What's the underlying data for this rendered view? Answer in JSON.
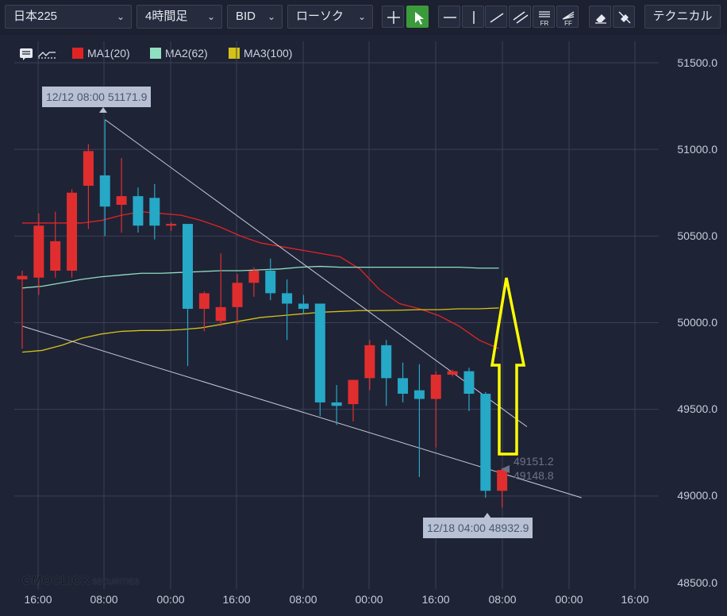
{
  "toolbar": {
    "symbol": "日本225",
    "timeframe": "4時間足",
    "side": "BID",
    "chart_type": "ローソク",
    "technical": "テクニカル",
    "tools": [
      "crosshair-icon",
      "cursor-icon",
      "horizontal-line-icon",
      "vertical-line-icon",
      "trend-line-icon",
      "parallel-lines-icon",
      "fibonacci-retracement-icon",
      "fibonacci-fan-icon",
      "eraser-icon",
      "erase-all-icon"
    ],
    "tool_labels": {
      "fr": "FR",
      "ff": "FF"
    },
    "active_tool": "cursor-icon"
  },
  "legend": [
    {
      "label": "MA1(20)",
      "color": "#e02424"
    },
    {
      "label": "MA2(62)",
      "color": "#8fe0c0"
    },
    {
      "label": "MA3(100)",
      "color": "#d4c21a"
    }
  ],
  "brand": {
    "name": "GMOCLICK",
    "sub": "SECURITIES"
  },
  "colors": {
    "up": "#e02e2e",
    "down": "#26a8c7",
    "background": "#1f2336",
    "arrow": "#ffff00"
  },
  "chart_data": {
    "type": "candlestick",
    "y_ticks": [
      "51500.0",
      "51000.0",
      "50500.0",
      "50000.0",
      "49500.0",
      "49000.0",
      "48500.0"
    ],
    "ylim": [
      48500,
      51700
    ],
    "x_ticks": [
      "16:00",
      "08:00",
      "00:00",
      "16:00",
      "08:00",
      "00:00",
      "16:00",
      "08:00",
      "00:00",
      "16:00"
    ],
    "candles": [
      {
        "o": 50250,
        "h": 50300,
        "l": 49850,
        "c": 50270
      },
      {
        "o": 50260,
        "h": 50630,
        "l": 50160,
        "c": 50560
      },
      {
        "o": 50300,
        "h": 50640,
        "l": 50260,
        "c": 50470
      },
      {
        "o": 50300,
        "h": 50770,
        "l": 50260,
        "c": 50750
      },
      {
        "o": 50790,
        "h": 51030,
        "l": 50540,
        "c": 50990
      },
      {
        "o": 50850,
        "h": 51172,
        "l": 50500,
        "c": 50670
      },
      {
        "o": 50680,
        "h": 50950,
        "l": 50520,
        "c": 50730
      },
      {
        "o": 50730,
        "h": 50780,
        "l": 50520,
        "c": 50560
      },
      {
        "o": 50720,
        "h": 50800,
        "l": 50480,
        "c": 50560
      },
      {
        "o": 50560,
        "h": 50580,
        "l": 50530,
        "c": 50570
      },
      {
        "o": 50570,
        "h": 50560,
        "l": 49750,
        "c": 50080
      },
      {
        "o": 50080,
        "h": 50180,
        "l": 49950,
        "c": 50170
      },
      {
        "o": 50010,
        "h": 50400,
        "l": 49980,
        "c": 50090
      },
      {
        "o": 50090,
        "h": 50280,
        "l": 49990,
        "c": 50230
      },
      {
        "o": 50230,
        "h": 50320,
        "l": 50150,
        "c": 50300
      },
      {
        "o": 50300,
        "h": 50370,
        "l": 50130,
        "c": 50170
      },
      {
        "o": 50170,
        "h": 50250,
        "l": 49900,
        "c": 50110
      },
      {
        "o": 50110,
        "h": 50160,
        "l": 50050,
        "c": 50080
      },
      {
        "o": 50110,
        "h": 50110,
        "l": 49460,
        "c": 49540
      },
      {
        "o": 49540,
        "h": 49640,
        "l": 49410,
        "c": 49520
      },
      {
        "o": 49530,
        "h": 49670,
        "l": 49430,
        "c": 49670
      },
      {
        "o": 49680,
        "h": 49900,
        "l": 49610,
        "c": 49870
      },
      {
        "o": 49870,
        "h": 49900,
        "l": 49520,
        "c": 49680
      },
      {
        "o": 49680,
        "h": 49770,
        "l": 49540,
        "c": 49590
      },
      {
        "o": 49610,
        "h": 49760,
        "l": 49110,
        "c": 49560
      },
      {
        "o": 49560,
        "h": 49720,
        "l": 49280,
        "c": 49700
      },
      {
        "o": 49700,
        "h": 49730,
        "l": 49690,
        "c": 49720
      },
      {
        "o": 49720,
        "h": 49740,
        "l": 49490,
        "c": 49590
      },
      {
        "o": 49590,
        "h": 49600,
        "l": 48990,
        "c": 49030
      },
      {
        "o": 49030,
        "h": 49160,
        "l": 48933,
        "c": 49150
      }
    ],
    "series": [
      {
        "name": "MA1(20)",
        "values": [
          50575,
          50575,
          50575,
          50575,
          50590,
          50620,
          50640,
          50630,
          50620,
          50590,
          50550,
          50500,
          50460,
          50440,
          50420,
          50400,
          50380,
          50310,
          50190,
          50110,
          50080,
          50040,
          49980,
          49900,
          49850
        ]
      },
      {
        "name": "MA2(62)",
        "values": [
          50200,
          50210,
          50230,
          50250,
          50265,
          50275,
          50285,
          50285,
          50290,
          50295,
          50300,
          50300,
          50305,
          50310,
          50320,
          50325,
          50320,
          50320,
          50320,
          50320,
          50320,
          50320,
          50320,
          50315,
          50315
        ]
      },
      {
        "name": "MA3(100)",
        "values": [
          49830,
          49840,
          49870,
          49910,
          49935,
          49950,
          49955,
          49955,
          49960,
          49970,
          49990,
          50010,
          50030,
          50040,
          50050,
          50060,
          50065,
          50070,
          50070,
          50072,
          50075,
          50075,
          50080,
          50080,
          50085
        ]
      }
    ],
    "trendlines": [
      {
        "from": {
          "i": 5,
          "v": 51172
        },
        "to": {
          "i": 30.5,
          "v": 49400
        }
      },
      {
        "from": {
          "i": 0,
          "v": 49980
        },
        "to": {
          "i": 33.8,
          "v": 48990
        }
      }
    ],
    "annotations": {
      "high": "12/12 08:00 51171.9",
      "low": "12/18 04:00 48932.9",
      "ask": "49151.2",
      "bid": "49148.8"
    }
  }
}
